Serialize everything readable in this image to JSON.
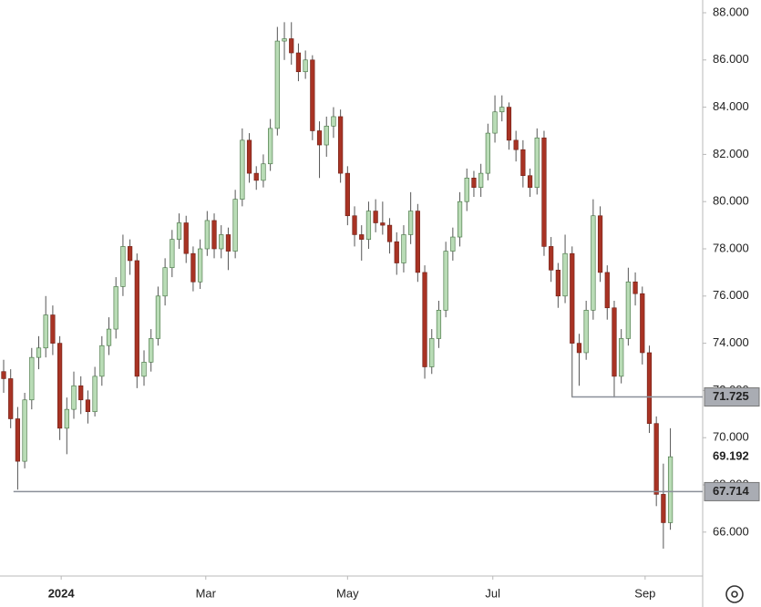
{
  "chart_data": {
    "type": "candlestick",
    "ohlc": [
      [
        72.8,
        73.3,
        71.9,
        72.5
      ],
      [
        72.5,
        72.9,
        70.4,
        70.8
      ],
      [
        70.8,
        71.3,
        67.8,
        69.0
      ],
      [
        69.0,
        71.9,
        68.7,
        71.6
      ],
      [
        71.6,
        73.8,
        71.2,
        73.4
      ],
      [
        73.4,
        74.3,
        72.9,
        73.8
      ],
      [
        73.8,
        76.0,
        73.4,
        75.2
      ],
      [
        75.2,
        75.6,
        73.5,
        74.0
      ],
      [
        74.0,
        74.3,
        69.9,
        70.4
      ],
      [
        70.4,
        71.7,
        69.3,
        71.2
      ],
      [
        71.2,
        72.8,
        70.8,
        72.2
      ],
      [
        72.2,
        72.6,
        71.0,
        71.6
      ],
      [
        71.6,
        72.0,
        70.6,
        71.1
      ],
      [
        71.1,
        73.0,
        70.9,
        72.6
      ],
      [
        72.6,
        74.3,
        72.2,
        73.9
      ],
      [
        73.9,
        75.1,
        73.5,
        74.6
      ],
      [
        74.6,
        76.8,
        74.2,
        76.4
      ],
      [
        76.4,
        78.6,
        76.0,
        78.1
      ],
      [
        78.1,
        78.4,
        76.9,
        77.5
      ],
      [
        77.5,
        77.8,
        72.1,
        72.6
      ],
      [
        72.6,
        73.7,
        72.2,
        73.2
      ],
      [
        73.2,
        74.6,
        72.8,
        74.2
      ],
      [
        74.2,
        76.4,
        73.9,
        76.0
      ],
      [
        76.0,
        77.6,
        75.6,
        77.2
      ],
      [
        77.2,
        78.8,
        76.8,
        78.4
      ],
      [
        78.4,
        79.5,
        78.0,
        79.1
      ],
      [
        79.1,
        79.4,
        77.4,
        77.8
      ],
      [
        77.8,
        78.1,
        76.2,
        76.6
      ],
      [
        76.6,
        78.4,
        76.3,
        78.0
      ],
      [
        78.0,
        79.6,
        77.7,
        79.2
      ],
      [
        79.2,
        79.5,
        77.6,
        78.0
      ],
      [
        78.0,
        79.0,
        77.6,
        78.6
      ],
      [
        78.6,
        78.9,
        77.1,
        77.9
      ],
      [
        77.9,
        80.5,
        77.6,
        80.1
      ],
      [
        80.1,
        83.1,
        79.8,
        82.6
      ],
      [
        82.6,
        82.9,
        80.8,
        81.2
      ],
      [
        81.2,
        81.5,
        80.5,
        80.9
      ],
      [
        80.9,
        82.0,
        80.6,
        81.6
      ],
      [
        81.6,
        83.5,
        81.3,
        83.1
      ],
      [
        83.1,
        87.4,
        82.8,
        86.8
      ],
      [
        86.8,
        87.6,
        86.0,
        86.9
      ],
      [
        86.9,
        87.6,
        85.8,
        86.3
      ],
      [
        86.3,
        86.7,
        85.1,
        85.5
      ],
      [
        85.5,
        86.4,
        85.2,
        86.0
      ],
      [
        86.0,
        86.2,
        82.6,
        83.0
      ],
      [
        83.0,
        83.4,
        81.0,
        82.4
      ],
      [
        82.4,
        83.6,
        81.9,
        83.2
      ],
      [
        83.2,
        84.0,
        82.7,
        83.6
      ],
      [
        83.6,
        83.9,
        80.8,
        81.2
      ],
      [
        81.2,
        81.5,
        79.0,
        79.4
      ],
      [
        79.4,
        79.8,
        78.1,
        78.6
      ],
      [
        78.6,
        79.0,
        77.5,
        78.4
      ],
      [
        78.4,
        80.0,
        78.0,
        79.6
      ],
      [
        79.6,
        80.1,
        78.7,
        79.1
      ],
      [
        79.1,
        80.0,
        78.6,
        79.0
      ],
      [
        79.0,
        79.3,
        77.8,
        78.3
      ],
      [
        78.3,
        78.7,
        76.9,
        77.4
      ],
      [
        77.4,
        79.0,
        77.0,
        78.6
      ],
      [
        78.6,
        80.4,
        78.2,
        79.6
      ],
      [
        79.6,
        79.9,
        76.6,
        77.0
      ],
      [
        77.0,
        77.3,
        72.5,
        73.0
      ],
      [
        73.0,
        74.6,
        72.7,
        74.2
      ],
      [
        74.2,
        75.8,
        73.8,
        75.4
      ],
      [
        75.4,
        78.3,
        75.1,
        77.9
      ],
      [
        77.9,
        78.9,
        77.5,
        78.5
      ],
      [
        78.5,
        80.4,
        78.1,
        80.0
      ],
      [
        80.0,
        81.4,
        79.6,
        81.0
      ],
      [
        81.0,
        81.3,
        80.2,
        80.6
      ],
      [
        80.6,
        81.6,
        80.2,
        81.2
      ],
      [
        81.2,
        83.3,
        80.9,
        82.9
      ],
      [
        82.9,
        84.5,
        82.5,
        83.8
      ],
      [
        83.8,
        84.5,
        83.4,
        84.0
      ],
      [
        84.0,
        84.2,
        82.2,
        82.6
      ],
      [
        82.6,
        83.0,
        81.7,
        82.2
      ],
      [
        82.2,
        82.6,
        80.6,
        81.1
      ],
      [
        81.1,
        81.4,
        80.2,
        80.6
      ],
      [
        80.6,
        83.1,
        80.3,
        82.7
      ],
      [
        82.7,
        83.0,
        77.7,
        78.1
      ],
      [
        78.1,
        78.5,
        76.6,
        77.1
      ],
      [
        77.1,
        77.4,
        75.5,
        76.0
      ],
      [
        76.0,
        78.6,
        75.7,
        77.8
      ],
      [
        77.8,
        78.1,
        71.7,
        74.0
      ],
      [
        74.0,
        74.4,
        72.2,
        73.6
      ],
      [
        73.6,
        75.8,
        73.3,
        75.4
      ],
      [
        75.4,
        80.1,
        75.0,
        79.4
      ],
      [
        79.4,
        79.8,
        76.6,
        77.0
      ],
      [
        77.0,
        77.3,
        75.0,
        75.5
      ],
      [
        75.5,
        75.8,
        71.7,
        72.6
      ],
      [
        72.6,
        74.6,
        72.3,
        74.2
      ],
      [
        74.2,
        77.2,
        73.9,
        76.6
      ],
      [
        76.6,
        77.0,
        75.6,
        76.1
      ],
      [
        76.1,
        76.4,
        73.1,
        73.6
      ],
      [
        73.6,
        73.9,
        70.2,
        70.6
      ],
      [
        70.6,
        70.9,
        67.1,
        67.6
      ],
      [
        67.6,
        68.9,
        65.3,
        66.4
      ],
      [
        66.4,
        70.4,
        66.1,
        69.192
      ]
    ],
    "up_color": "#b9dcb6",
    "down_color": "#a83324",
    "xlim": [
      -0.52,
      99.6
    ],
    "xticks": [
      {
        "value": 8.2,
        "label": "2024"
      },
      {
        "value": 28.8,
        "label": "Mar"
      },
      {
        "value": 49.0,
        "label": "May"
      },
      {
        "value": 69.7,
        "label": "Jul"
      },
      {
        "value": 91.4,
        "label": "Sep"
      }
    ],
    "ylim": [
      64.14,
      88.54
    ],
    "yticks": [
      {
        "value": 66,
        "label": "66.000"
      },
      {
        "value": 68,
        "label": "68.000"
      },
      {
        "value": 70,
        "label": "70.000"
      },
      {
        "value": 72,
        "label": "72.000"
      },
      {
        "value": 74,
        "label": "74.000"
      },
      {
        "value": 76,
        "label": "76.000"
      },
      {
        "value": 78,
        "label": "78.000"
      },
      {
        "value": 80,
        "label": "80.000"
      },
      {
        "value": 82,
        "label": "82.000"
      },
      {
        "value": 84,
        "label": "84.000"
      },
      {
        "value": 86,
        "label": "86.000"
      },
      {
        "value": 88,
        "label": "88.000"
      }
    ],
    "levels": [
      {
        "value": 71.725,
        "x_start": 81
      },
      {
        "value": 67.714,
        "x_start": 1.4
      }
    ],
    "last_price": 69.192,
    "grid": false
  }
}
